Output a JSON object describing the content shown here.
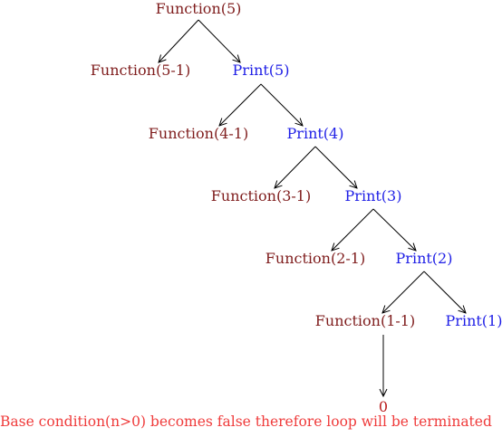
{
  "tree": {
    "root": "Function(5)",
    "levels": [
      {
        "function": "Function(5-1)",
        "print": "Print(5)"
      },
      {
        "function": "Function(4-1)",
        "print": "Print(4)"
      },
      {
        "function": "Function(3-1)",
        "print": "Print(3)"
      },
      {
        "function": "Function(2-1)",
        "print": "Print(2)"
      },
      {
        "function": "Function(1-1)",
        "print": "Print(1)"
      }
    ],
    "terminal": "0"
  },
  "note": "Base condition(n>0) becomes false therefore loop will be terminated",
  "colors": {
    "function": "#7f1d1d",
    "print": "#1f1fe6",
    "terminal": "#b91c1c",
    "note": "#ef3b3b",
    "edge": "#000000"
  }
}
